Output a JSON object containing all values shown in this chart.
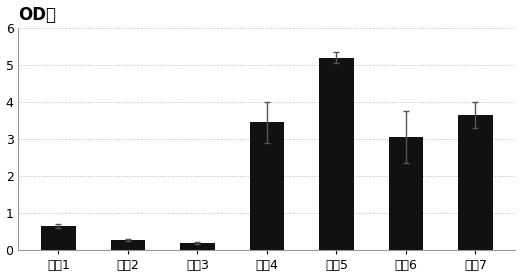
{
  "categories": [
    "配方1",
    "配方2",
    "配方3",
    "配方4",
    "配方5",
    "配方6",
    "配方7"
  ],
  "values": [
    0.65,
    0.28,
    0.2,
    3.45,
    5.2,
    3.05,
    3.65
  ],
  "errors": [
    0.05,
    0.03,
    0.03,
    0.55,
    0.15,
    0.7,
    0.35
  ],
  "bar_color": "#111111",
  "error_color": "#555555",
  "title": "OD値",
  "ylim": [
    0,
    6
  ],
  "yticks": [
    0,
    1,
    2,
    3,
    4,
    5,
    6
  ],
  "background_color": "#ffffff",
  "title_fontsize": 12,
  "tick_fontsize": 9,
  "bar_width": 0.5
}
